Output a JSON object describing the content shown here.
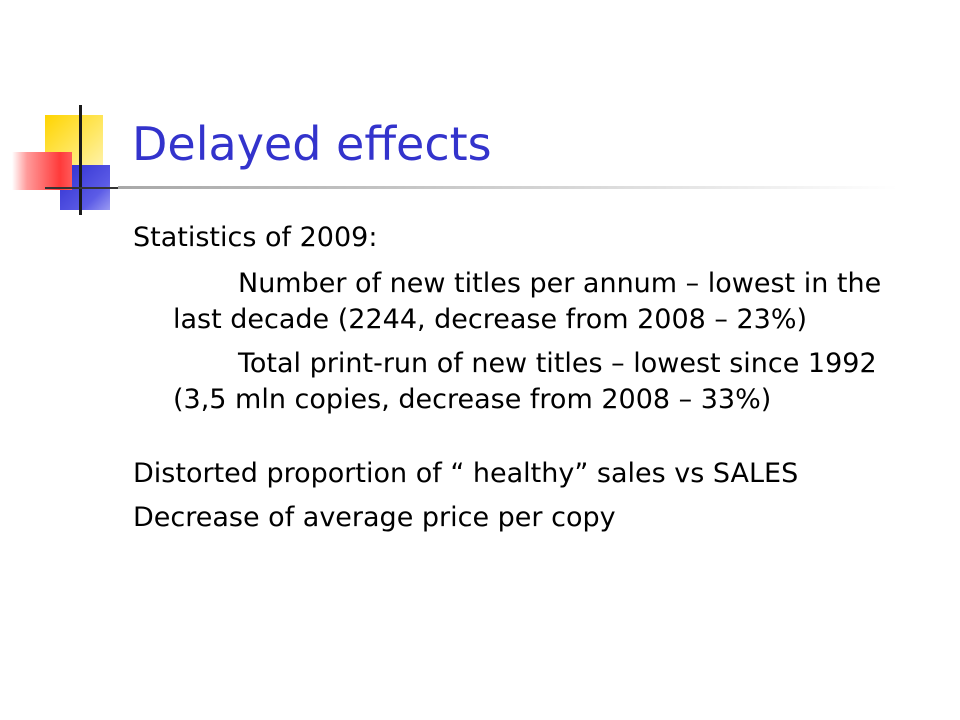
{
  "slide": {
    "title": "Delayed effects",
    "lines": [
      "Statistics of 2009:",
      "Number of new titles per annum – lowest in the last decade (2244, decrease from 2008 – 23%)",
      "Total print-run of new titles – lowest since 1992 (3,5 mln copies, decrease from 2008 – 33%)",
      "Distorted proportion of “ healthy” sales vs SALES",
      "Decrease of average price per copy"
    ]
  },
  "colors": {
    "title": "#3333cc",
    "accent_yellow": "#ffd400",
    "accent_blue": "#2d2dcf",
    "accent_red": "#ff3a3a"
  },
  "icons": [
    "slide-logo-icon"
  ]
}
